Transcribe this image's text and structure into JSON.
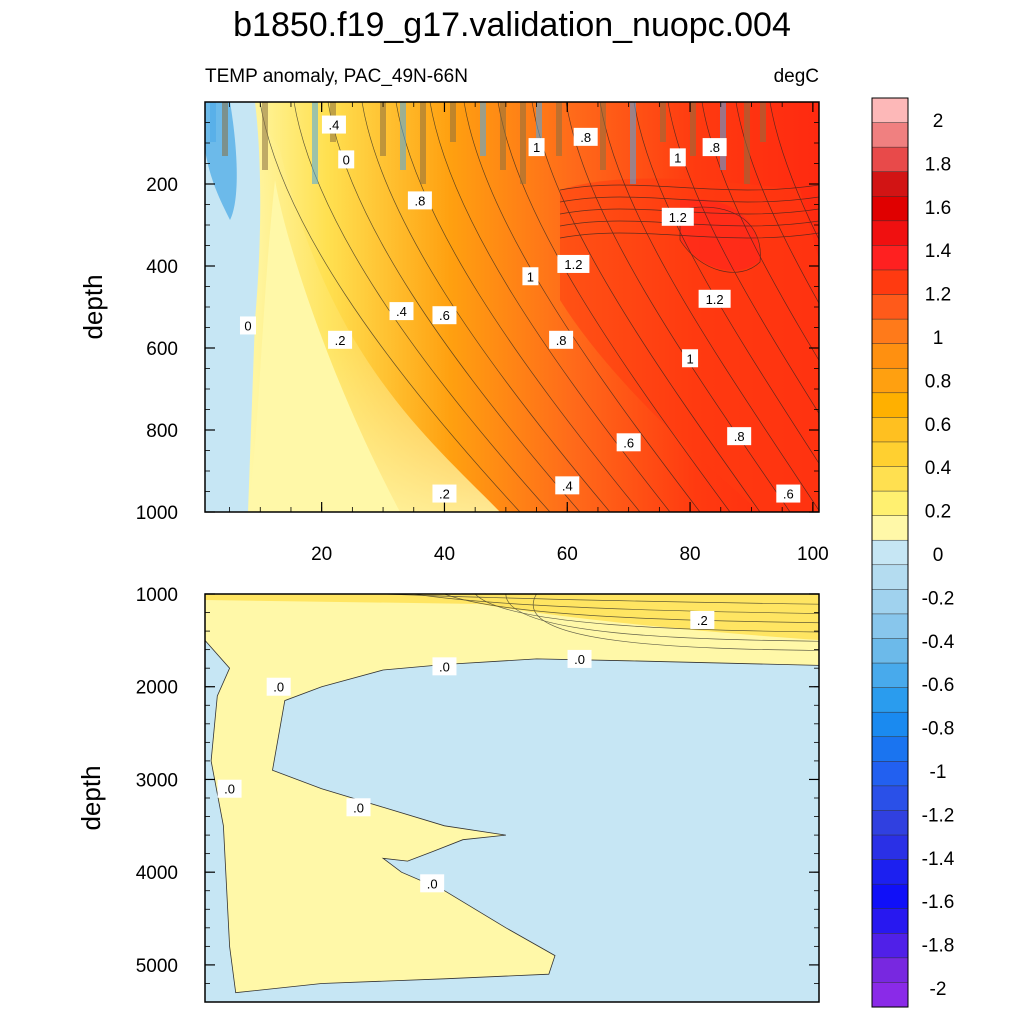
{
  "chart_data": {
    "type": "heatmap",
    "title": "b1850.f19_g17.validation_nuopc.004",
    "left_subtitle": "TEMP anomaly, PAC_49N-66N",
    "right_subtitle": "degC",
    "ylabel": "depth",
    "xlabel": "",
    "x_range": [
      1,
      101
    ],
    "x_ticks": [
      20,
      40,
      60,
      80,
      100
    ],
    "upper_panel": {
      "y_range": [
        0,
        1000
      ],
      "y_ticks": [
        200,
        400,
        600,
        800,
        1000
      ],
      "contour_labels": [
        {
          "text": ".4",
          "x": 22,
          "y": 55
        },
        {
          "text": "0",
          "x": 24,
          "y": 140
        },
        {
          "text": "1",
          "x": 55,
          "y": 110
        },
        {
          "text": ".8",
          "x": 63,
          "y": 85
        },
        {
          "text": "1",
          "x": 78,
          "y": 135
        },
        {
          "text": ".8",
          "x": 84,
          "y": 110
        },
        {
          "text": ".8",
          "x": 36,
          "y": 240
        },
        {
          "text": "1.2",
          "x": 78,
          "y": 280
        },
        {
          "text": "1.2",
          "x": 61,
          "y": 395
        },
        {
          "text": "1",
          "x": 54,
          "y": 425
        },
        {
          "text": "1.2",
          "x": 84,
          "y": 480
        },
        {
          "text": ".4",
          "x": 33,
          "y": 510
        },
        {
          "text": ".6",
          "x": 40,
          "y": 520
        },
        {
          "text": "0",
          "x": 8,
          "y": 545
        },
        {
          "text": ".2",
          "x": 23,
          "y": 580
        },
        {
          "text": ".8",
          "x": 59,
          "y": 580
        },
        {
          "text": "1",
          "x": 80,
          "y": 625
        },
        {
          "text": ".6",
          "x": 70,
          "y": 830
        },
        {
          "text": ".8",
          "x": 88,
          "y": 815
        },
        {
          "text": ".4",
          "x": 60,
          "y": 935
        },
        {
          "text": ".2",
          "x": 40,
          "y": 955
        },
        {
          "text": ".6",
          "x": 96,
          "y": 955
        }
      ]
    },
    "lower_panel": {
      "y_range": [
        1000,
        5400
      ],
      "y_ticks": [
        1000,
        2000,
        3000,
        4000,
        5000
      ],
      "contour_labels": [
        {
          "text": ".2",
          "x": 82,
          "y": 1280
        },
        {
          "text": ".0",
          "x": 40,
          "y": 1780
        },
        {
          "text": ".0",
          "x": 62,
          "y": 1700
        },
        {
          "text": ".0",
          "x": 13,
          "y": 2000
        },
        {
          "text": ".0",
          "x": 5,
          "y": 3100
        },
        {
          "text": ".0",
          "x": 26,
          "y": 3300
        },
        {
          "text": ".0",
          "x": 38,
          "y": 4120
        }
      ]
    },
    "colorbar": {
      "labels": [
        "2",
        "1.8",
        "1.6",
        "1.4",
        "1.2",
        "1",
        "0.8",
        "0.6",
        "0.4",
        "0.2",
        "0",
        "-0.2",
        "-0.4",
        "-0.6",
        "-0.8",
        "-1",
        "-1.2",
        "-1.4",
        "-1.6",
        "-1.8",
        "-2"
      ],
      "colors": [
        "#fdb8b8",
        "#f08080",
        "#e84a4a",
        "#d21414",
        "#e00000",
        "#f01010",
        "#ff2020",
        "#ff3a10",
        "#ff5a1a",
        "#ff7a1a",
        "#ff9010",
        "#ffa010",
        "#ffb000",
        "#ffc020",
        "#ffd030",
        "#ffe050",
        "#fff070",
        "#fff8a8",
        "#c6e6f4",
        "#b4dcf0",
        "#a0d2ee",
        "#88c6ec",
        "#6cbaea",
        "#48aaec",
        "#2a9cee",
        "#1a8af0",
        "#1a74f0",
        "#2260f0",
        "#2a50e8",
        "#3040e0",
        "#2a30e6",
        "#1c20f0",
        "#1010f8",
        "#2818f0",
        "#5020e8",
        "#7828e0",
        "#8a2ae8"
      ]
    }
  }
}
